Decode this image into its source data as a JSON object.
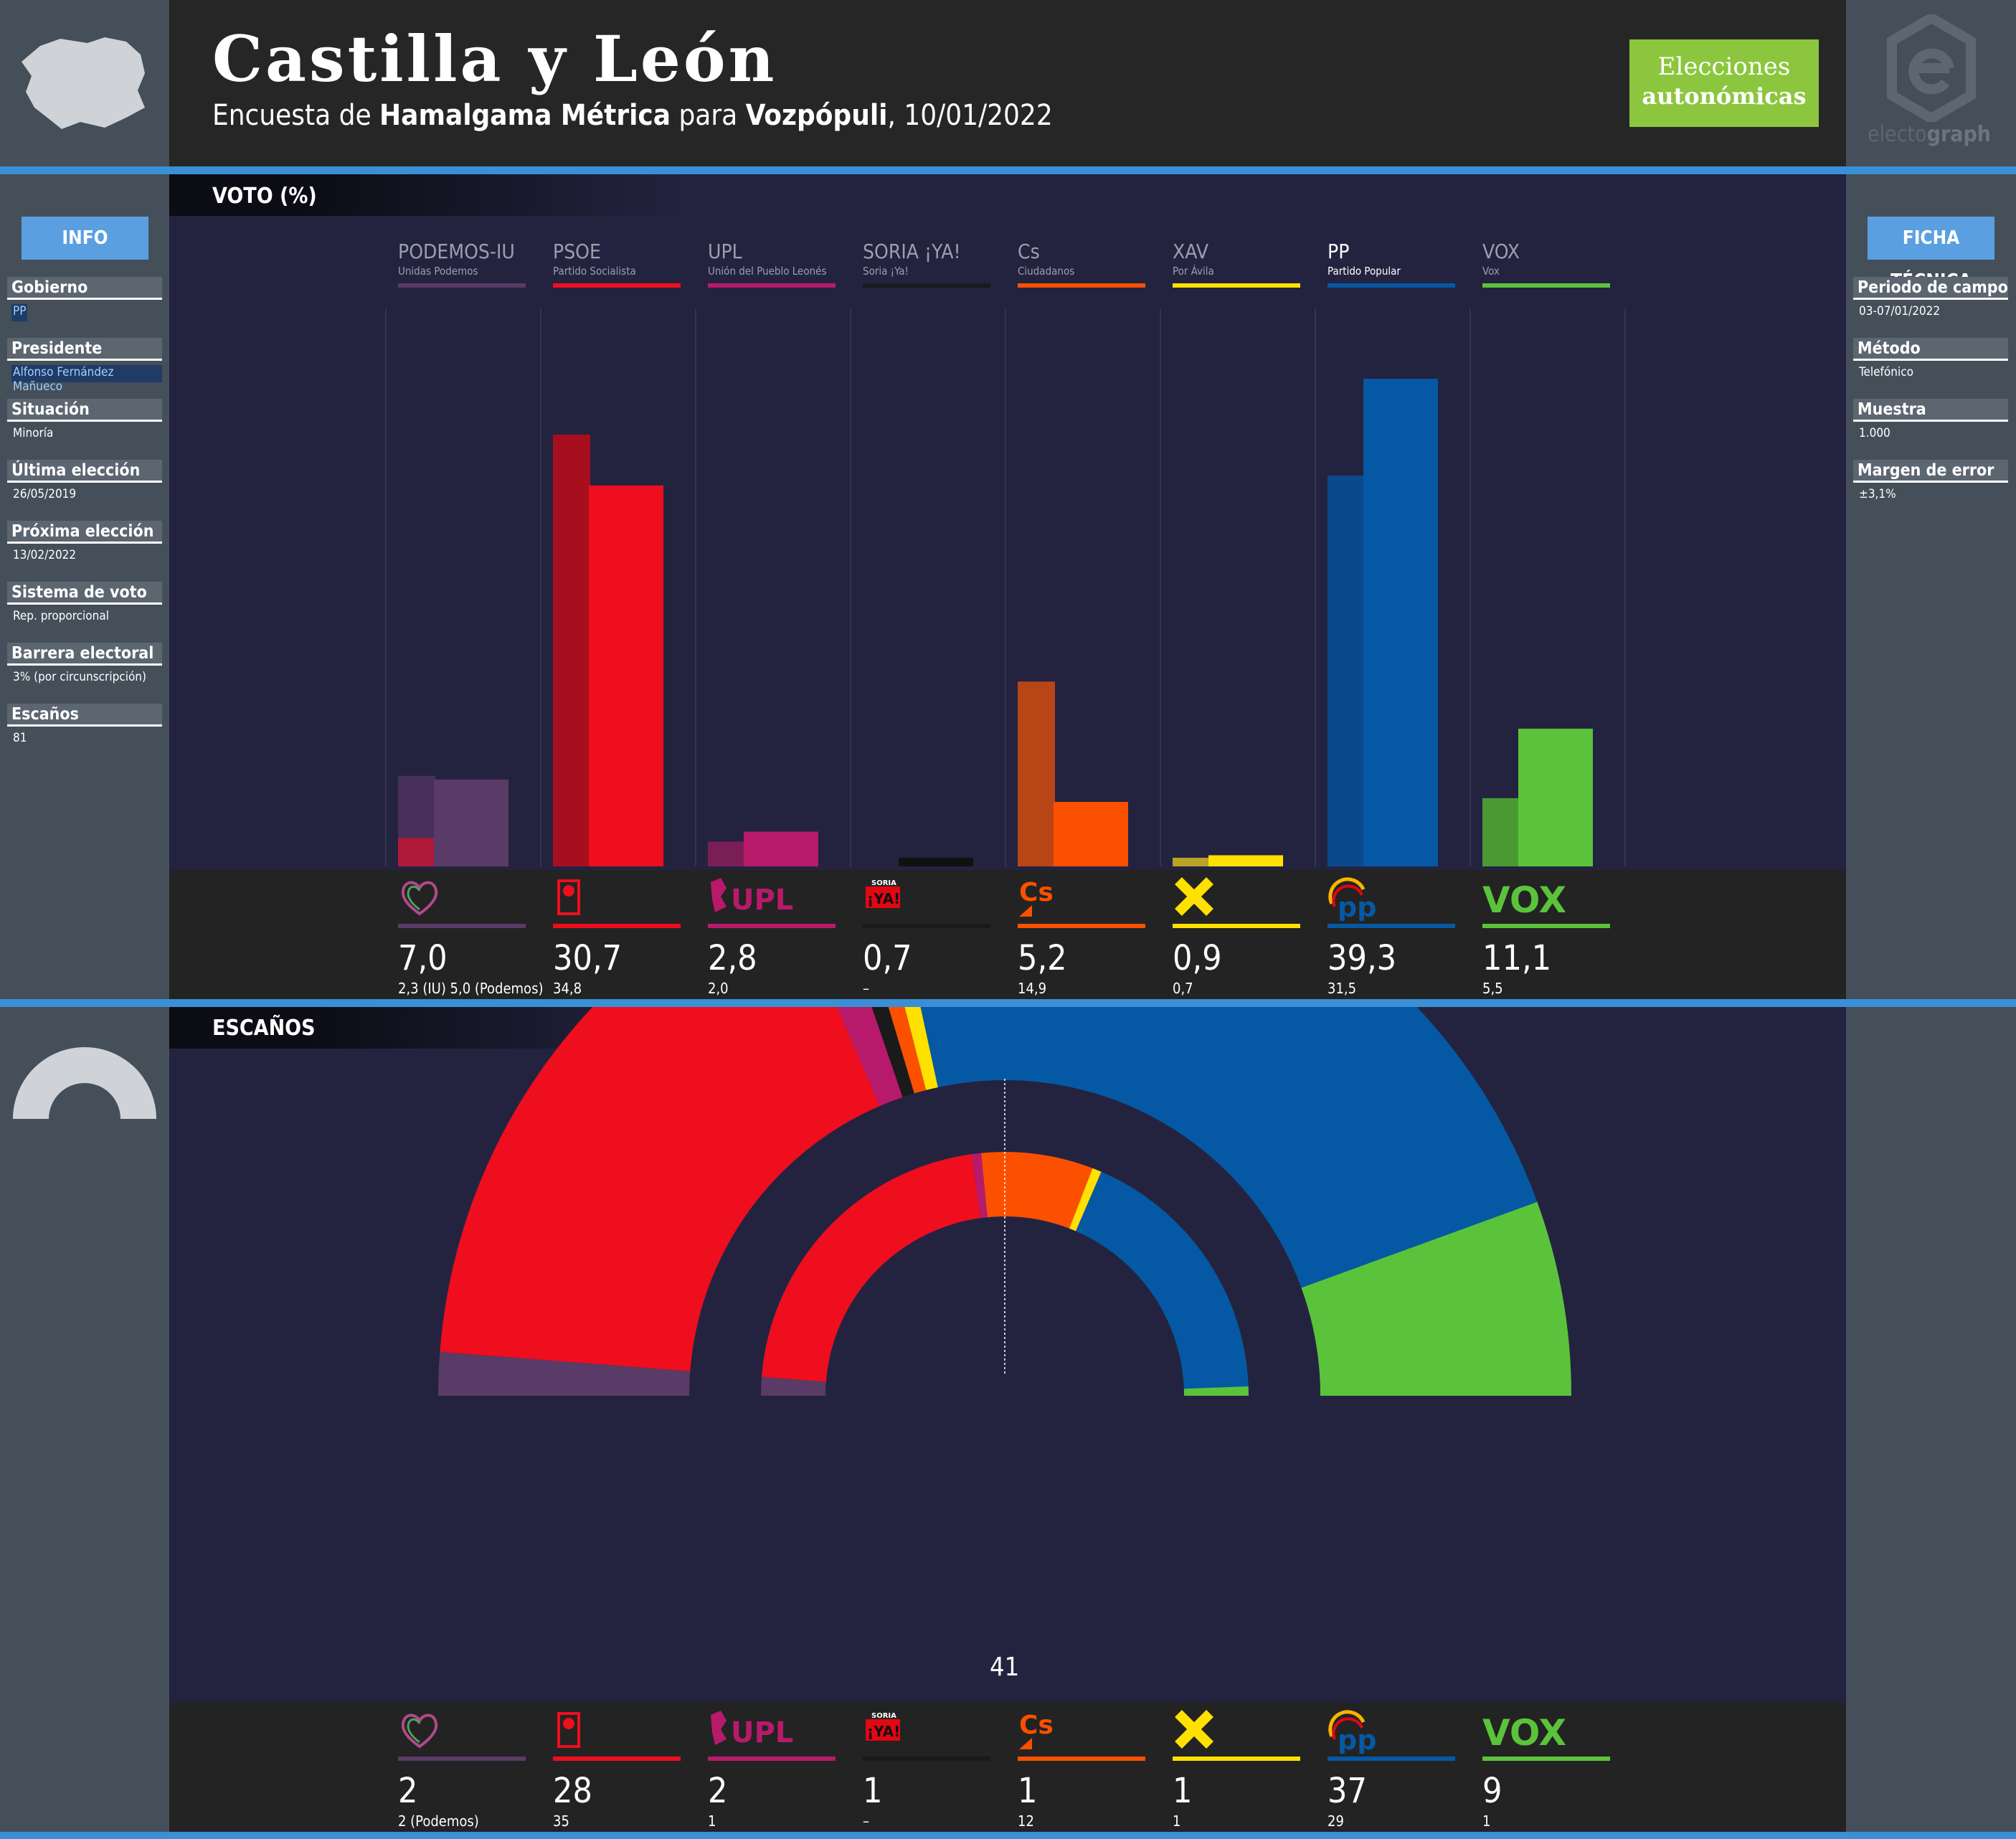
{
  "header": {
    "title": "Castilla y León",
    "subtitle_prefix": "Encuesta de ",
    "pollster": "Hamalgama Métrica",
    "subtitle_mid": " para ",
    "media": "Vozpópuli",
    "subtitle_date": ", 10/01/2022",
    "badge_line1": "Elecciones",
    "badge_line2": "autonómicas",
    "brand_light": "electo",
    "brand_bold": "graph"
  },
  "sections": {
    "vote": "VOTO (%)",
    "seats": "ESCAÑOS"
  },
  "info": {
    "button": "INFO",
    "items": [
      {
        "label": "Gobierno",
        "value": "PP",
        "highlight": true
      },
      {
        "label": "Presidente",
        "value": "Alfonso Fernández Mañueco",
        "highlight": true
      },
      {
        "label": "Situación",
        "value": "Minoría"
      },
      {
        "label": "Última elección",
        "value": "26/05/2019"
      },
      {
        "label": "Próxima elección",
        "value": "13/02/2022"
      },
      {
        "label": "Sistema de voto",
        "value": "Rep. proporcional"
      },
      {
        "label": "Barrera electoral",
        "value": "3% (por circunscripción)"
      },
      {
        "label": "Escaños",
        "value": "81"
      }
    ]
  },
  "ficha": {
    "button": "FICHA TÉCNICA",
    "items": [
      {
        "label": "Periodo de campo",
        "value": "03-07/01/2022"
      },
      {
        "label": "Método",
        "value": "Telefónico"
      },
      {
        "label": "Muestra",
        "value": "1.000"
      },
      {
        "label": "Margen de error",
        "value": "±3,1%"
      }
    ]
  },
  "total_seats": "81",
  "majority": "41",
  "colors": {
    "PODEMOS-IU": "#5a3a66",
    "PSOE": "#ee0e1e",
    "UPL": "#b81a6b",
    "SORIA": "#1a1a1a",
    "Cs": "#fb5000",
    "XAV": "#ffe100",
    "PP": "#0559a4",
    "VOX": "#5bc33b"
  },
  "parties": [
    {
      "key": "PODEMOS-IU",
      "name": "PODEMOS-IU",
      "full": "Unidas Podemos",
      "color": "#5a3a66",
      "icon": "podemos-heart-icon",
      "vote": "7,0",
      "vote_prev": "2,3 (IU) 5,0 (Podemos)",
      "seats": "2",
      "seats_prev": "2 (Podemos)"
    },
    {
      "key": "PSOE",
      "name": "PSOE",
      "full": "Partido Socialista",
      "color": "#ee0e1e",
      "icon": "psoe-rose-icon",
      "vote": "30,7",
      "vote_prev": "34,8",
      "seats": "28",
      "seats_prev": "35"
    },
    {
      "key": "UPL",
      "name": "UPL",
      "full": "Unión del Pueblo Leonés",
      "color": "#b81a6b",
      "icon": "upl-lion-icon",
      "vote": "2,8",
      "vote_prev": "2,0",
      "seats": "2",
      "seats_prev": "1"
    },
    {
      "key": "SORIA",
      "name": "SORIA ¡YA!",
      "full": "Soria ¡Ya!",
      "color": "#1a1a1a",
      "icon": "soria-ya-icon",
      "vote": "0,7",
      "vote_prev": "–",
      "seats": "1",
      "seats_prev": "–"
    },
    {
      "key": "Cs",
      "name": "Cs",
      "full": "Ciudadanos",
      "color": "#fb5000",
      "icon": "cs-logo-icon",
      "vote": "5,2",
      "vote_prev": "14,9",
      "seats": "1",
      "seats_prev": "12"
    },
    {
      "key": "XAV",
      "name": "XAV",
      "full": "Por Ávila",
      "color": "#ffe100",
      "icon": "xav-cross-icon",
      "vote": "0,9",
      "vote_prev": "0,7",
      "seats": "1",
      "seats_prev": "1"
    },
    {
      "key": "PP",
      "name": "PP",
      "full": "Partido Popular",
      "color": "#0559a4",
      "icon": "pp-logo-icon",
      "vote": "39,3",
      "vote_prev": "31,5",
      "seats": "37",
      "seats_prev": "29"
    },
    {
      "key": "VOX",
      "name": "VOX",
      "full": "Vox",
      "color": "#5bc33b",
      "icon": "vox-logo-icon",
      "vote": "11,1",
      "vote_prev": "5,5",
      "seats": "9",
      "seats_prev": "1"
    }
  ],
  "chart_data": [
    {
      "type": "bar",
      "title": "VOTO (%)",
      "categories": [
        "PODEMOS-IU",
        "PSOE",
        "UPL",
        "SORIA ¡YA!",
        "Cs",
        "XAV",
        "PP",
        "VOX"
      ],
      "series": [
        {
          "name": "previous",
          "values": [
            7.3,
            34.8,
            2.0,
            null,
            14.9,
            0.7,
            31.5,
            5.5
          ],
          "stack_detail": {
            "PODEMOS-IU": {
              "IU": 2.3,
              "Podemos": 5.0
            }
          }
        },
        {
          "name": "poll",
          "values": [
            7.0,
            30.7,
            2.8,
            0.7,
            5.2,
            0.9,
            39.3,
            11.1
          ]
        }
      ]
    },
    {
      "type": "pie",
      "title": "ESCAÑOS",
      "style": "hemicycle",
      "outer_ring": {
        "categories": [
          "PODEMOS-IU",
          "PSOE",
          "UPL",
          "SORIA ¡YA!",
          "Cs",
          "XAV",
          "PP",
          "VOX"
        ],
        "values": [
          2,
          28,
          2,
          1,
          1,
          1,
          37,
          9
        ]
      },
      "inner_ring": {
        "categories": [
          "PODEMOS-IU",
          "PSOE",
          "UPL",
          "SORIA ¡YA!",
          "Cs",
          "XAV",
          "PP",
          "VOX"
        ],
        "values": [
          2,
          35,
          1,
          0,
          12,
          1,
          29,
          1
        ]
      },
      "total": 81,
      "majority": 41
    }
  ]
}
